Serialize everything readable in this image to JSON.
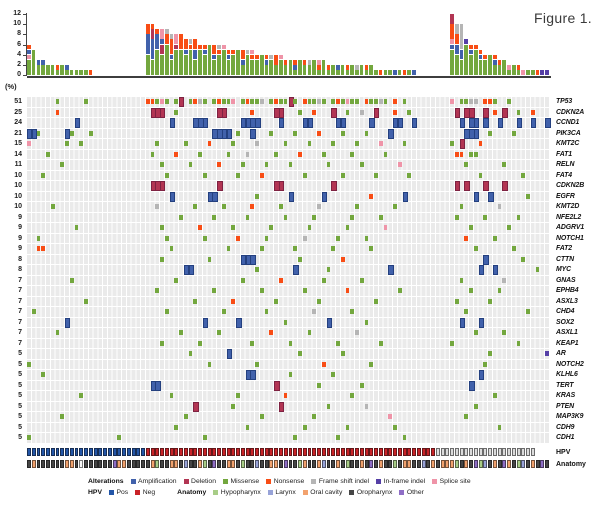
{
  "title": "Figure 1.",
  "percent_header": "(%)",
  "colors": {
    "codes": {
      "A": "#4161ab",
      "D": "#b23553",
      "M": "#73a73e",
      "N": "#f84d15",
      "F": "#b5b5b5",
      "I": "#553fa6",
      "S": "#ef94a8",
      "P": "#2356a8",
      "G": "#c92227",
      "U": "#dcdcdc",
      "H": "#a8cd87",
      "L": "#98a3d8",
      "C": "#f2a26e",
      "O": "#464646",
      "T": "#8f6ec6",
      "W": "#f7f7f7"
    },
    "borders": {
      "A": "#24407f",
      "D": "#7e2242"
    },
    "matrix_bg": "#eaeaea",
    "axis": "#3f3f3f"
  },
  "chart_data": {
    "type": "oncoprint",
    "columns": 110,
    "groups": [
      {
        "name": "HPV positive",
        "start": 0,
        "end": 24
      },
      {
        "name": "HPV negative",
        "start": 25,
        "end": 88
      },
      {
        "name": "HPV unknown",
        "start": 89,
        "end": 109
      }
    ],
    "top_bars": {
      "ymax": 12,
      "yticks": [
        0,
        2,
        4,
        6,
        8,
        10,
        12
      ],
      "bars": [
        "MMMSAN",
        "MMMMM",
        "MMA",
        "MMA",
        "MM",
        "MM",
        "MN",
        "MM",
        "MA",
        "M",
        "M",
        "M",
        "M",
        "N",
        "",
        "",
        "",
        "",
        "",
        "",
        "",
        "",
        "",
        "",
        "",
        "MMMMAAAANN",
        "MMMAAAADDN",
        "MMMMMAAAN",
        "MMMMDDASS",
        "MMMMMMNNF",
        "MMMANNNF",
        "MMMMMDSS",
        "MMMMMNNN",
        "MMMMANN",
        "MMMMMNF",
        "MMMAANN",
        "MMMMMN",
        "MMMMAN",
        "MMMMMM",
        "MMMANN",
        "MMMMNF",
        "MMMMMS",
        "MMMAN",
        "MMMMN",
        "MMMMM",
        "MMANN",
        "MMMMF",
        "MMMNS",
        "MMMN",
        "MMMM",
        "MMAN",
        "MMMF",
        "MMNN",
        "MMMS",
        "MMN",
        "MMM",
        "MAN",
        "MMM",
        "MMN",
        "MMF",
        "MMM",
        "MNS",
        "MMM",
        "MN",
        "MM",
        "MA",
        "MM",
        "MN",
        "MM",
        "MF",
        "MM",
        "MN",
        "MM",
        "M",
        "N",
        "M",
        "M",
        "A",
        "M",
        "N",
        "M",
        "A",
        "",
        "",
        "",
        "",
        "",
        "",
        "",
        "MMMMMASNNNDD",
        "MMMMAANNFF",
        "MMMAAFFFFF",
        "MMMMMMI",
        "MMMMAN",
        "MMMMMN",
        "MMMAN",
        "MMMN",
        "MMMM",
        "MMAN",
        "MMN",
        "MMM",
        "MS",
        "MM",
        "MN",
        "S",
        "M",
        "M",
        "N",
        "I",
        "I"
      ]
    },
    "genes": [
      {
        "name": "TP53",
        "pct": 51,
        "cells": {
          "6": "M",
          "12": "M",
          "25": "N",
          "26": "N",
          "27": "M",
          "28": "S",
          "29": "M",
          "31": "M",
          "32": "D",
          "34": "M",
          "35": "N",
          "36": "F",
          "37": "M",
          "39": "M",
          "40": "N",
          "41": "M",
          "42": "M",
          "43": "S",
          "45": "M",
          "46": "N",
          "47": "M",
          "48": "M",
          "49": "F",
          "51": "M",
          "52": "N",
          "53": "M",
          "54": "M",
          "55": "D",
          "56": "M",
          "58": "N",
          "59": "M",
          "60": "M",
          "61": "F",
          "62": "M",
          "64": "M",
          "65": "N",
          "66": "M",
          "67": "S",
          "68": "M",
          "69": "M",
          "71": "N",
          "72": "M",
          "73": "M",
          "74": "F",
          "75": "M",
          "77": "N",
          "79": "M",
          "89": "S",
          "91": "M",
          "92": "M",
          "93": "F",
          "94": "F",
          "96": "N",
          "97": "N",
          "98": "M",
          "101": "M"
        }
      },
      {
        "name": "CDKN2A",
        "pct": 25,
        "cells": {
          "6": "N",
          "26": "D",
          "27": "D",
          "28": "D",
          "31": "M",
          "40": "D",
          "41": "D",
          "47": "N",
          "52": "D",
          "53": "D",
          "57": "M",
          "60": "N",
          "64": "D",
          "67": "M",
          "70": "F",
          "73": "D",
          "77": "N",
          "80": "M",
          "90": "D",
          "92": "D",
          "93": "D",
          "96": "D",
          "98": "N",
          "100": "D",
          "103": "M",
          "106": "N"
        }
      },
      {
        "name": "CCND1",
        "pct": 24,
        "cells": {
          "10": "A",
          "30": "A",
          "35": "A",
          "36": "A",
          "37": "A",
          "45": "A",
          "46": "A",
          "47": "A",
          "48": "A",
          "53": "A",
          "58": "A",
          "59": "A",
          "65": "A",
          "66": "A",
          "72": "A",
          "77": "A",
          "78": "A",
          "81": "A",
          "91": "A",
          "93": "A",
          "94": "A",
          "96": "A",
          "99": "A",
          "103": "A",
          "106": "A",
          "109": "A"
        }
      },
      {
        "name": "PIK3CA",
        "pct": 21,
        "cells": {
          "0": "A",
          "1": "A",
          "2": "M",
          "8": "A",
          "9": "M",
          "13": "M",
          "39": "A",
          "40": "A",
          "41": "A",
          "42": "A",
          "44": "M",
          "47": "A",
          "51": "M",
          "56": "M",
          "61": "N",
          "66": "M",
          "71": "M",
          "76": "A",
          "92": "A",
          "93": "A",
          "94": "A",
          "97": "M",
          "102": "M"
        }
      },
      {
        "name": "KMT2C",
        "pct": 15,
        "cells": {
          "0": "S",
          "8": "M",
          "11": "M",
          "27": "M",
          "33": "M",
          "38": "N",
          "43": "M",
          "48": "F",
          "54": "M",
          "59": "M",
          "64": "M",
          "69": "M",
          "74": "S",
          "79": "M",
          "89": "M",
          "91": "D",
          "95": "N"
        }
      },
      {
        "name": "FAT1",
        "pct": 14,
        "cells": {
          "4": "M",
          "26": "M",
          "31": "N",
          "36": "M",
          "42": "M",
          "46": "F",
          "52": "M",
          "57": "N",
          "62": "M",
          "68": "M",
          "75": "M",
          "90": "N",
          "91": "N",
          "93": "M",
          "94": "M"
        }
      },
      {
        "name": "RELN",
        "pct": 11,
        "cells": {
          "7": "M",
          "28": "M",
          "34": "M",
          "40": "N",
          "45": "M",
          "50": "M",
          "55": "M",
          "63": "M",
          "70": "M",
          "78": "S",
          "92": "M",
          "100": "M"
        }
      },
      {
        "name": "FAT4",
        "pct": 10,
        "cells": {
          "3": "M",
          "29": "M",
          "37": "M",
          "44": "M",
          "49": "N",
          "58": "M",
          "66": "M",
          "73": "M",
          "80": "M",
          "95": "M",
          "104": "M"
        }
      },
      {
        "name": "CDKN2B",
        "pct": 10,
        "cells": {
          "26": "D",
          "27": "D",
          "28": "D",
          "40": "D",
          "52": "D",
          "53": "D",
          "64": "D",
          "90": "D",
          "92": "D",
          "96": "D",
          "100": "D"
        }
      },
      {
        "name": "EGFR",
        "pct": 10,
        "cells": {
          "30": "A",
          "38": "A",
          "39": "A",
          "48": "M",
          "55": "A",
          "62": "A",
          "72": "N",
          "79": "A",
          "94": "A",
          "97": "A",
          "105": "M"
        }
      },
      {
        "name": "KMT2D",
        "pct": 10,
        "cells": {
          "5": "M",
          "27": "F",
          "35": "M",
          "41": "M",
          "47": "N",
          "53": "M",
          "61": "F",
          "69": "M",
          "77": "M",
          "91": "M",
          "99": "F"
        }
      },
      {
        "name": "NFE2L2",
        "pct": 9,
        "cells": {
          "32": "M",
          "39": "M",
          "46": "M",
          "54": "M",
          "60": "M",
          "68": "M",
          "74": "M",
          "90": "M",
          "96": "M",
          "103": "M"
        }
      },
      {
        "name": "ADGRV1",
        "pct": 9,
        "cells": {
          "10": "M",
          "28": "M",
          "36": "N",
          "43": "M",
          "51": "M",
          "59": "M",
          "67": "M",
          "75": "S",
          "93": "M",
          "101": "M"
        }
      },
      {
        "name": "NOTCH1",
        "pct": 9,
        "cells": {
          "2": "M",
          "29": "M",
          "37": "M",
          "44": "N",
          "50": "M",
          "58": "F",
          "65": "M",
          "71": "M",
          "92": "N",
          "98": "M"
        }
      },
      {
        "name": "FAT2",
        "pct": 9,
        "cells": {
          "2": "N",
          "3": "N",
          "30": "M",
          "42": "M",
          "49": "M",
          "56": "M",
          "64": "M",
          "72": "M",
          "94": "M",
          "102": "M"
        }
      },
      {
        "name": "CTTN",
        "pct": 8,
        "cells": {
          "28": "M",
          "38": "M",
          "45": "A",
          "46": "A",
          "47": "A",
          "57": "M",
          "66": "N",
          "96": "A",
          "104": "M"
        }
      },
      {
        "name": "MYC",
        "pct": 8,
        "cells": {
          "33": "A",
          "34": "A",
          "48": "M",
          "56": "A",
          "63": "M",
          "76": "A",
          "95": "A",
          "98": "A",
          "107": "M"
        }
      },
      {
        "name": "GNAS",
        "pct": 7,
        "cells": {
          "9": "M",
          "31": "M",
          "45": "M",
          "53": "N",
          "62": "M",
          "70": "M",
          "91": "M",
          "100": "F"
        }
      },
      {
        "name": "EPHB4",
        "pct": 7,
        "cells": {
          "27": "M",
          "39": "M",
          "49": "M",
          "58": "M",
          "67": "N",
          "78": "M",
          "93": "M",
          "99": "M"
        }
      },
      {
        "name": "ASXL3",
        "pct": 7,
        "cells": {
          "12": "M",
          "35": "M",
          "43": "N",
          "52": "M",
          "61": "M",
          "73": "M",
          "90": "M",
          "97": "M"
        }
      },
      {
        "name": "CHD4",
        "pct": 7,
        "cells": {
          "1": "M",
          "29": "M",
          "41": "M",
          "50": "M",
          "60": "F",
          "68": "M",
          "92": "M",
          "105": "M"
        }
      },
      {
        "name": "SOX2",
        "pct": 7,
        "cells": {
          "8": "A",
          "37": "A",
          "44": "A",
          "54": "M",
          "63": "A",
          "71": "M",
          "91": "A",
          "95": "A"
        }
      },
      {
        "name": "ASXL1",
        "pct": 7,
        "cells": {
          "6": "M",
          "32": "M",
          "40": "M",
          "51": "N",
          "59": "M",
          "69": "F",
          "94": "M",
          "100": "M"
        }
      },
      {
        "name": "KEAP1",
        "pct": 7,
        "cells": {
          "28": "M",
          "36": "M",
          "47": "M",
          "55": "M",
          "65": "M",
          "74": "M",
          "89": "M",
          "103": "M"
        }
      },
      {
        "name": "AR",
        "pct": 5,
        "cells": {
          "34": "M",
          "42": "A",
          "57": "M",
          "66": "M",
          "97": "M",
          "109": "I"
        }
      },
      {
        "name": "NOTCH2",
        "pct": 5,
        "cells": {
          "0": "M",
          "38": "M",
          "48": "M",
          "62": "N",
          "72": "M",
          "96": "M"
        }
      },
      {
        "name": "KLHL6",
        "pct": 5,
        "cells": {
          "3": "M",
          "46": "A",
          "47": "A",
          "55": "M",
          "64": "M",
          "95": "A"
        }
      },
      {
        "name": "TERT",
        "pct": 5,
        "cells": {
          "26": "A",
          "27": "A",
          "52": "D",
          "61": "M",
          "70": "M",
          "93": "A"
        }
      },
      {
        "name": "KRAS",
        "pct": 5,
        "cells": {
          "11": "M",
          "30": "M",
          "44": "M",
          "54": "N",
          "68": "M",
          "98": "M"
        }
      },
      {
        "name": "PTEN",
        "pct": 5,
        "cells": {
          "35": "D",
          "43": "M",
          "53": "D",
          "63": "M",
          "71": "F",
          "94": "M"
        }
      },
      {
        "name": "MAP3K9",
        "pct": 5,
        "cells": {
          "7": "M",
          "33": "M",
          "49": "M",
          "60": "M",
          "76": "S",
          "92": "M"
        }
      },
      {
        "name": "CDH9",
        "pct": 5,
        "cells": {
          "31": "M",
          "46": "M",
          "58": "M",
          "67": "M",
          "77": "M",
          "99": "M"
        }
      },
      {
        "name": "CDH1",
        "pct": 5,
        "cells": {
          "0": "M",
          "19": "M",
          "37": "M",
          "56": "M",
          "65": "M",
          "79": "M"
        }
      }
    ],
    "tracks": {
      "hpv": {
        "label": "HPV",
        "cells": "PPPPPPPPPPPPPPPPPPPPPPPPPGGGGGGGGGGGGGGGGGGGGGGGGGGGGGGGGGGGGGGGGGGGGGGGGGGGGGGGGGGGGGUUUUUUUUUUUUUUUUUUUUU"
      },
      "anatomy": {
        "label": "Anatomy",
        "cells": "OCOOOOOOCCOWOOOOOOTCCOOOOOCHOOCCOLOOCHOTOOCCOHOOLOOCCOTOOHCOOCLOOCOHOOCOTOCOOHOCCOOLOCOCCCHOCOTHLOCOTCOHLOCOTO"
      }
    }
  },
  "legend": {
    "alterations": {
      "header": "Alterations",
      "items": [
        {
          "label": "Amplification",
          "code": "A"
        },
        {
          "label": "Deletion",
          "code": "D"
        },
        {
          "label": "Missense",
          "code": "M"
        },
        {
          "label": "Nonsense",
          "code": "N"
        },
        {
          "label": "Frame shift indel",
          "code": "F"
        },
        {
          "label": "In-frame indel",
          "code": "I"
        },
        {
          "label": "Splice site",
          "code": "S"
        }
      ]
    },
    "hpv": {
      "header": "HPV",
      "items": [
        {
          "label": "Pos",
          "code": "P"
        },
        {
          "label": "Neg",
          "code": "G"
        }
      ]
    },
    "anatomy": {
      "header": "Anatomy",
      "items": [
        {
          "label": "Hypopharynx",
          "code": "H"
        },
        {
          "label": "Larynx",
          "code": "L"
        },
        {
          "label": "Oral cavity",
          "code": "C"
        },
        {
          "label": "Oropharynx",
          "code": "O"
        },
        {
          "label": "Other",
          "code": "T"
        }
      ]
    }
  }
}
